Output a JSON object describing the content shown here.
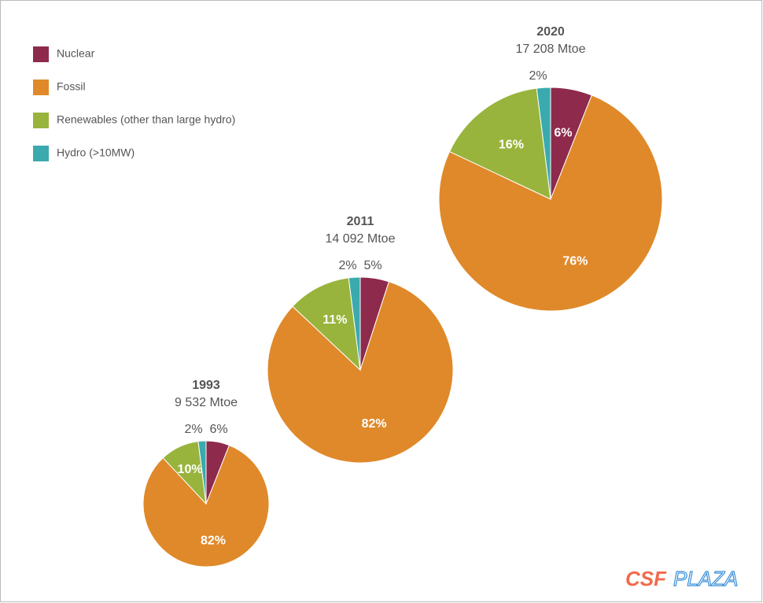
{
  "legend": {
    "items": [
      {
        "name": "Nuclear",
        "color": "#8e2a4c"
      },
      {
        "name": "Fossil",
        "color": "#e0892a"
      },
      {
        "name": "Renewables (other than large hydro)",
        "color": "#98b43c"
      },
      {
        "name": "Hydro (>10MW)",
        "color": "#3aaaae"
      }
    ]
  },
  "chart_data": [
    {
      "type": "pie",
      "title": "1993",
      "subtitle": "9 532 Mtoe",
      "values": [
        6,
        82,
        10,
        2
      ],
      "value_labels": [
        "6%",
        "82%",
        "10%",
        "2%"
      ]
    },
    {
      "type": "pie",
      "title": "2011",
      "subtitle": "14 092 Mtoe",
      "values": [
        5,
        82,
        11,
        2
      ],
      "value_labels": [
        "5%",
        "82%",
        "11%",
        "2%"
      ]
    },
    {
      "type": "pie",
      "title": "2020",
      "subtitle": "17 208 Mtoe",
      "values": [
        6,
        76,
        16,
        2
      ],
      "value_labels": [
        "6%",
        "76%",
        "16%",
        "2%"
      ]
    }
  ],
  "watermark": [
    "CSF",
    "PLAZA"
  ]
}
